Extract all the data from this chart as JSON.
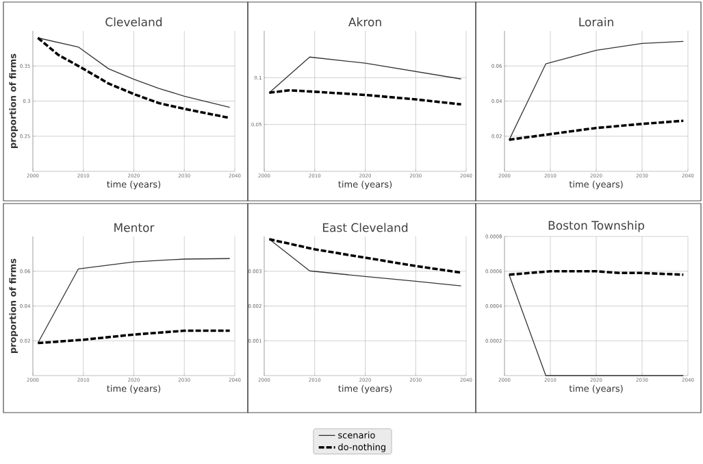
{
  "chart_data": [
    {
      "type": "line",
      "title": "Cleveland",
      "xlabel": "time (years)",
      "ylabel": "proportion of firms",
      "xlim": [
        2000,
        2040
      ],
      "ylim": [
        0.2,
        0.4
      ],
      "xticks": [
        2000,
        2010,
        2020,
        2030,
        2040
      ],
      "yticks": [
        0.25,
        0.3,
        0.35
      ],
      "grid": true,
      "legend": "bottom",
      "series": [
        {
          "name": "scenario",
          "color": "#333333",
          "line_style": "solid",
          "x": [
            2001,
            2009,
            2015,
            2020,
            2025,
            2030,
            2039
          ],
          "values": [
            0.39,
            0.377,
            0.346,
            0.331,
            0.318,
            0.307,
            0.291
          ]
        },
        {
          "name": "do-nothing",
          "color": "#000000",
          "line_style": "dashed",
          "x": [
            2001,
            2005,
            2010,
            2015,
            2020,
            2025,
            2030,
            2039
          ],
          "values": [
            0.39,
            0.366,
            0.346,
            0.325,
            0.31,
            0.297,
            0.289,
            0.276
          ]
        }
      ]
    },
    {
      "type": "line",
      "title": "Akron",
      "xlabel": "time (years)",
      "xlim": [
        2000,
        2040
      ],
      "ylim": [
        0,
        0.15
      ],
      "xticks": [
        2000,
        2010,
        2020,
        2030,
        2040
      ],
      "yticks": [
        0.05,
        0.1
      ],
      "grid": true,
      "series": [
        {
          "color": "#333333",
          "line_style": "solid",
          "x": [
            2001,
            2009,
            2020,
            2039
          ],
          "values": [
            0.084,
            0.122,
            0.1155,
            0.0986
          ]
        },
        {
          "color": "#000000",
          "line_style": "dashed",
          "x": [
            2001,
            2005,
            2010,
            2020,
            2030,
            2039
          ],
          "values": [
            0.084,
            0.0865,
            0.085,
            0.0816,
            0.0768,
            0.0715
          ]
        }
      ]
    },
    {
      "type": "line",
      "title": "Lorain",
      "xlabel": "time (years)",
      "xlim": [
        2000,
        2040
      ],
      "ylim": [
        0,
        0.08
      ],
      "xticks": [
        2000,
        2010,
        2020,
        2030,
        2040
      ],
      "yticks": [
        0.02,
        0.04,
        0.06
      ],
      "grid": true,
      "series": [
        {
          "color": "#333333",
          "line_style": "solid",
          "x": [
            2001,
            2009,
            2020,
            2030,
            2039
          ],
          "values": [
            0.0178,
            0.0612,
            0.0689,
            0.0728,
            0.074
          ]
        },
        {
          "color": "#000000",
          "line_style": "dashed",
          "x": [
            2001,
            2010,
            2020,
            2030,
            2039
          ],
          "values": [
            0.018,
            0.0212,
            0.0247,
            0.027,
            0.0288
          ]
        }
      ]
    },
    {
      "type": "line",
      "title": "Mentor",
      "xlabel": "time (years)",
      "ylabel": "proportion of firms",
      "xlim": [
        2000,
        2040
      ],
      "ylim": [
        0,
        0.08
      ],
      "xticks": [
        2000,
        2010,
        2020,
        2030,
        2040
      ],
      "yticks": [
        0.02,
        0.04,
        0.06
      ],
      "grid": true,
      "series": [
        {
          "color": "#333333",
          "line_style": "solid",
          "x": [
            2001,
            2009,
            2020,
            2030,
            2039
          ],
          "values": [
            0.0187,
            0.0613,
            0.0654,
            0.067,
            0.0673
          ]
        },
        {
          "color": "#000000",
          "line_style": "dashed",
          "x": [
            2001,
            2010,
            2020,
            2030,
            2039
          ],
          "values": [
            0.0187,
            0.0206,
            0.0236,
            0.0258,
            0.0258
          ]
        }
      ]
    },
    {
      "type": "line",
      "title": "East Cleveland",
      "xlabel": "time (years)",
      "xlim": [
        2000,
        2040
      ],
      "ylim": [
        0,
        0.004
      ],
      "xticks": [
        2000,
        2010,
        2020,
        2030,
        2040
      ],
      "yticks": [
        0.001,
        0.002,
        0.003
      ],
      "grid": true,
      "series": [
        {
          "color": "#333333",
          "line_style": "solid",
          "x": [
            2001,
            2009,
            2020,
            2030,
            2039
          ],
          "values": [
            0.00392,
            0.00301,
            0.00285,
            0.00271,
            0.00258
          ]
        },
        {
          "color": "#000000",
          "line_style": "dashed",
          "x": [
            2001,
            2010,
            2020,
            2030,
            2039
          ],
          "values": [
            0.00392,
            0.00363,
            0.00339,
            0.00315,
            0.00296
          ]
        }
      ]
    },
    {
      "type": "line",
      "title": "Boston Township",
      "xlabel": "time (years)",
      "xlim": [
        2000,
        2040
      ],
      "ylim": [
        0,
        0.0008
      ],
      "xticks": [
        2000,
        2010,
        2020,
        2030,
        2040
      ],
      "yticks": [
        0.0002,
        0.0004,
        0.0006,
        0.0008
      ],
      "grid": true,
      "series": [
        {
          "color": "#333333",
          "line_style": "solid",
          "x": [
            2001,
            2009,
            2039
          ],
          "values": [
            0.00058,
            0,
            0
          ]
        },
        {
          "color": "#000000",
          "line_style": "dashed",
          "x": [
            2001,
            2010,
            2020,
            2025,
            2030,
            2039
          ],
          "values": [
            0.00058,
            0.0006,
            0.0006,
            0.00059,
            0.00059,
            0.00058
          ]
        }
      ]
    }
  ]
}
